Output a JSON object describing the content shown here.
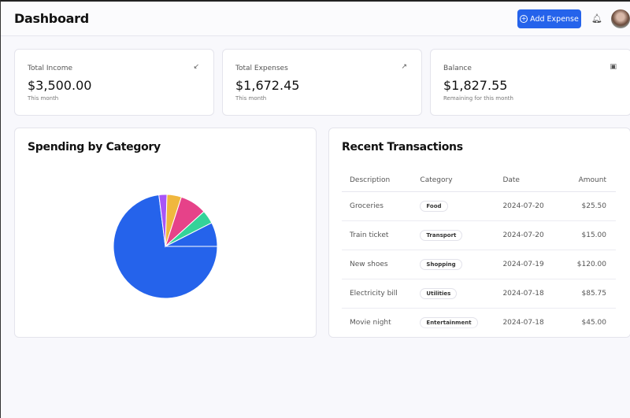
{
  "header": {
    "title": "Dashboard",
    "add_expense": "Add Expense",
    "icons": {
      "add": "plus-circle-icon",
      "bell": "bell-icon"
    }
  },
  "stats": [
    {
      "label": "Total Income",
      "value": "$3,500.00",
      "sub": "This month",
      "icon": "arrow-down-left-icon"
    },
    {
      "label": "Total Expenses",
      "value": "$1,672.45",
      "sub": "This month",
      "icon": "arrow-up-right-icon"
    },
    {
      "label": "Balance",
      "value": "$1,827.55",
      "sub": "Remaining for this month",
      "icon": "wallet-icon"
    }
  ],
  "spending": {
    "title": "Spending by Category"
  },
  "chart_data": {
    "type": "pie",
    "values": [
      73,
      2.5,
      4.5,
      8.3,
      4.2,
      7.5
    ],
    "colors": [
      "#2563eb",
      "#a855f7",
      "#f0b73e",
      "#e64289",
      "#34d399",
      "#2563eb"
    ]
  },
  "transactions": {
    "title": "Recent Transactions",
    "columns": [
      "Description",
      "Category",
      "Date",
      "Amount"
    ],
    "rows": [
      {
        "description": "Groceries",
        "category": "Food",
        "date": "2024-07-20",
        "amount": "$25.50"
      },
      {
        "description": "Train ticket",
        "category": "Transport",
        "date": "2024-07-20",
        "amount": "$15.00"
      },
      {
        "description": "New shoes",
        "category": "Shopping",
        "date": "2024-07-19",
        "amount": "$120.00"
      },
      {
        "description": "Electricity bill",
        "category": "Utilities",
        "date": "2024-07-18",
        "amount": "$85.75"
      },
      {
        "description": "Movie night",
        "category": "Entertainment",
        "date": "2024-07-18",
        "amount": "$45.00"
      }
    ]
  }
}
